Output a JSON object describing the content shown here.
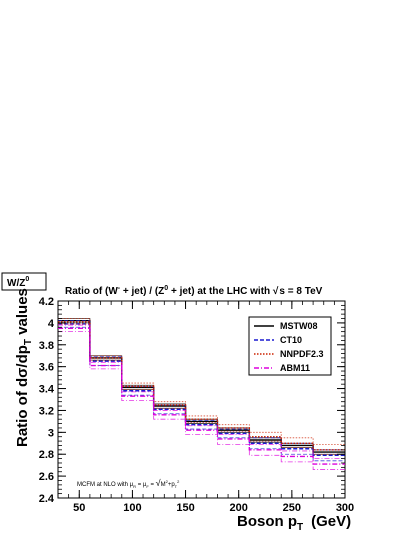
{
  "chart_data": {
    "type": "line",
    "panel_label": "W/Z",
    "panel_label_sup": "0",
    "title": {
      "p1": "Ratio of (W",
      "p1_sup": "-",
      "p2": " + jet) / (Z",
      "p2_sup": "0",
      "p3": " + jet) at the LHC with ",
      "p4": "s = 8 TeV"
    },
    "xlabel": {
      "main": "Boson p",
      "sub": "T",
      "unit": "(GeV)"
    },
    "ylabel": {
      "main": "Ratio of dσ/dp",
      "sub": "T",
      "tail": " values"
    },
    "xlim": [
      30,
      300
    ],
    "ylim": [
      2.4,
      4.2
    ],
    "x_ticks": [
      "50",
      "100",
      "150",
      "200",
      "250",
      "300"
    ],
    "y_ticks": [
      "2.4",
      "2.6",
      "2.8",
      "3",
      "3.2",
      "3.4",
      "3.6",
      "3.8",
      "4",
      "4.2"
    ],
    "bin_edges": [
      30,
      60,
      90,
      120,
      150,
      180,
      210,
      240,
      270,
      300
    ],
    "series": [
      {
        "name": "MSTW08",
        "color": "#000000",
        "dash": "solid",
        "values": [
          4.02,
          3.68,
          3.41,
          3.24,
          3.1,
          3.02,
          2.93,
          2.88,
          2.82
        ],
        "lower": [
          4.0,
          3.66,
          3.39,
          3.22,
          3.08,
          3.0,
          2.91,
          2.86,
          2.8
        ],
        "upper": [
          4.04,
          3.7,
          3.43,
          3.26,
          3.12,
          3.04,
          2.95,
          2.9,
          2.84
        ]
      },
      {
        "name": "CT10",
        "color": "#1a1ad0",
        "dash": "dashed",
        "values": [
          3.99,
          3.65,
          3.38,
          3.21,
          3.07,
          2.99,
          2.9,
          2.85,
          2.79
        ],
        "lower": [
          3.96,
          3.61,
          3.34,
          3.17,
          3.03,
          2.95,
          2.85,
          2.8,
          2.74
        ],
        "upper": [
          4.02,
          3.69,
          3.42,
          3.25,
          3.11,
          3.03,
          2.95,
          2.9,
          2.84
        ]
      },
      {
        "name": "NNPDF2.3",
        "color": "#cc2200",
        "dash": "dotted",
        "values": [
          4.01,
          3.68,
          3.42,
          3.25,
          3.12,
          3.04,
          2.96,
          2.9,
          2.84
        ],
        "lower": [
          3.99,
          3.66,
          3.39,
          3.22,
          3.09,
          3.01,
          2.92,
          2.86,
          2.8
        ],
        "upper": [
          4.04,
          3.7,
          3.45,
          3.28,
          3.15,
          3.07,
          3.0,
          2.95,
          2.89
        ]
      },
      {
        "name": "ABM11",
        "color": "#dd00dd",
        "dash": "dashdot",
        "values": [
          3.95,
          3.61,
          3.33,
          3.16,
          3.02,
          2.94,
          2.84,
          2.78,
          2.71
        ],
        "lower": [
          3.92,
          3.58,
          3.29,
          3.12,
          2.98,
          2.89,
          2.79,
          2.73,
          2.66
        ],
        "upper": [
          3.98,
          3.64,
          3.37,
          3.2,
          3.06,
          2.98,
          2.89,
          2.83,
          2.76
        ]
      }
    ],
    "annotation": {
      "main": "MCFM at NLO with μ",
      "r": "R",
      "eq": " = μ",
      "f": "F",
      "eq2": " = ",
      "sqrt": "√",
      "m": "M",
      "m_sup": "2",
      "plus": "+p",
      "t": "T",
      "t_sup": "2"
    },
    "grid": false,
    "legend_position": "top-right"
  }
}
